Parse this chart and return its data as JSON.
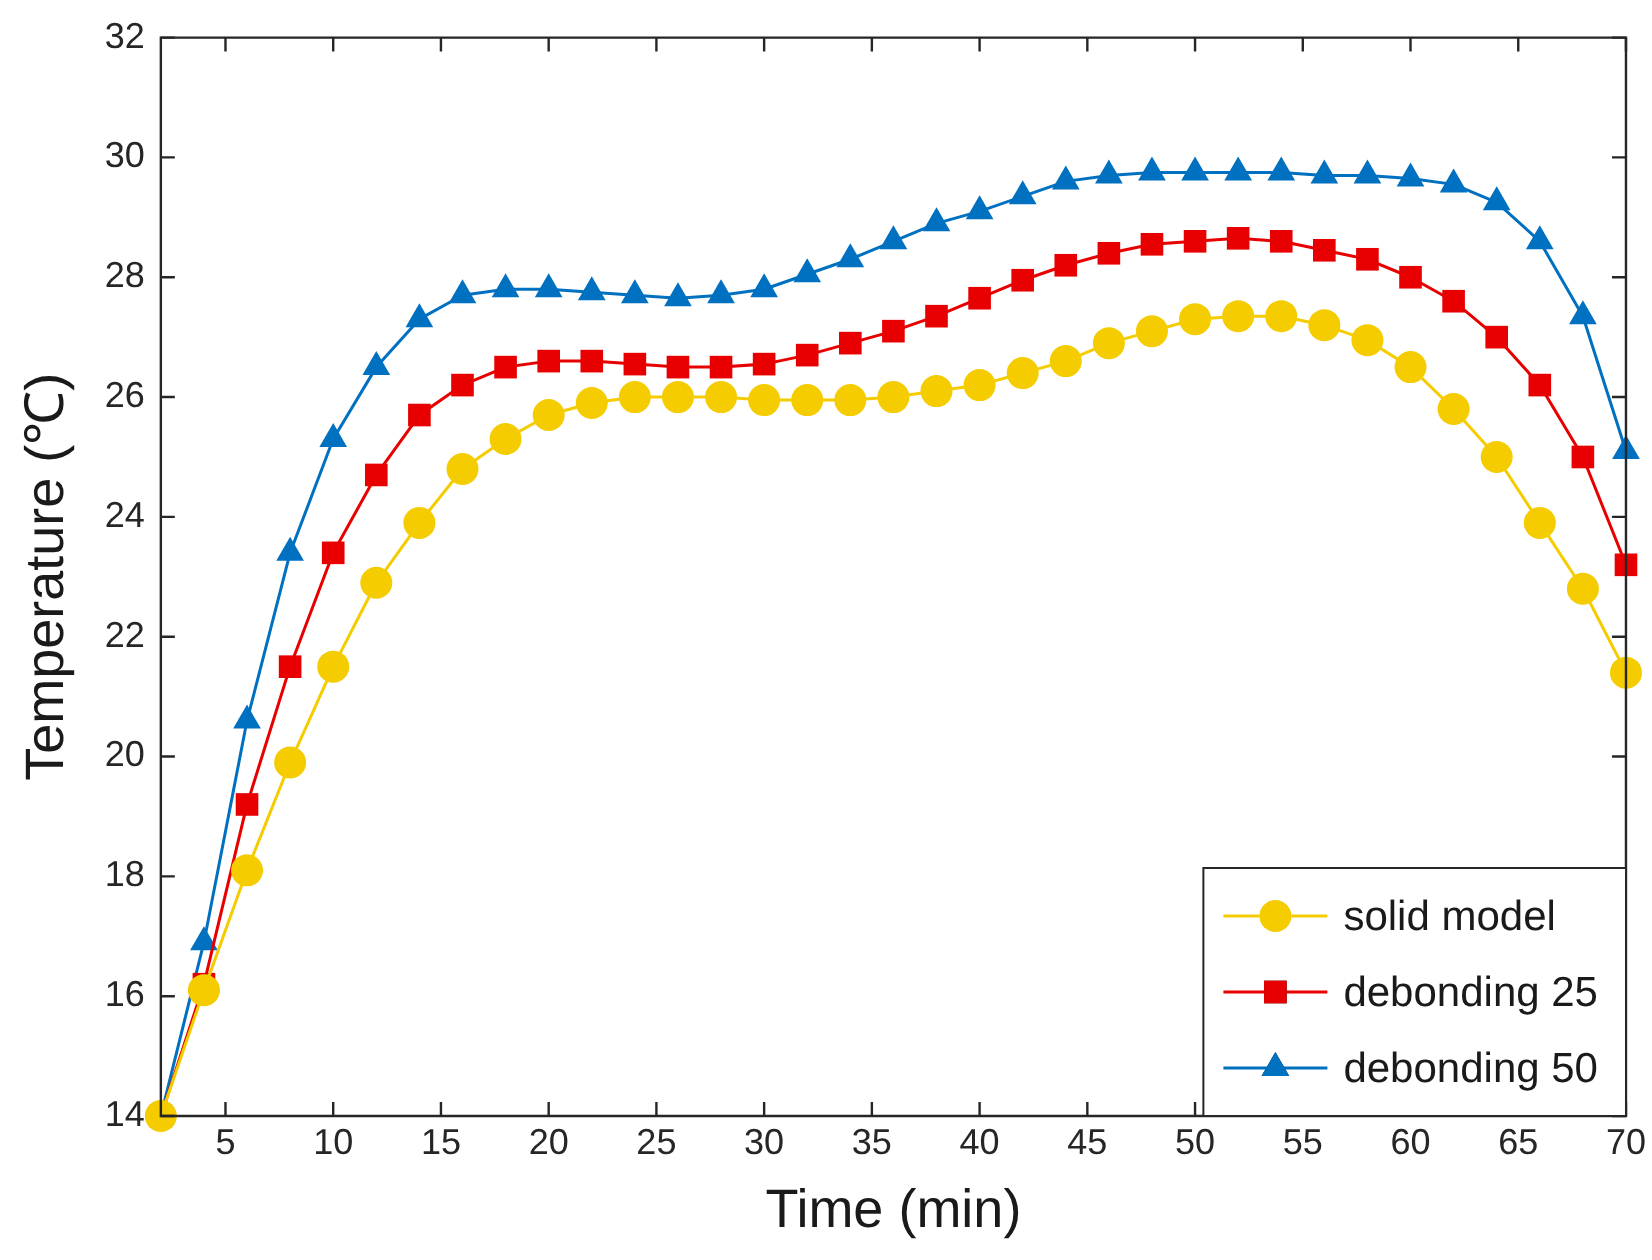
{
  "chart_data": {
    "type": "line",
    "xlabel": "Time (min)",
    "ylabel": "Temperature (℃)",
    "x": [
      2,
      4,
      6,
      8,
      10,
      12,
      14,
      16,
      18,
      20,
      22,
      24,
      26,
      28,
      30,
      32,
      34,
      36,
      38,
      40,
      42,
      44,
      46,
      48,
      50,
      52,
      54,
      56,
      58,
      60,
      62,
      64,
      66,
      68,
      70
    ],
    "series": [
      {
        "name": "solid model",
        "color": "#f5cc00",
        "marker": "circle",
        "values": [
          14,
          16.1,
          18.1,
          19.9,
          21.5,
          22.9,
          23.9,
          24.8,
          25.3,
          25.7,
          25.9,
          26.0,
          26.0,
          26.0,
          25.95,
          25.95,
          25.95,
          26.0,
          26.1,
          26.2,
          26.4,
          26.6,
          26.9,
          27.1,
          27.3,
          27.35,
          27.35,
          27.2,
          26.95,
          26.5,
          25.8,
          25.0,
          23.9,
          22.8,
          21.4
        ]
      },
      {
        "name": "debonding 25",
        "color": "#e80000",
        "marker": "square",
        "values": [
          14,
          16.2,
          19.2,
          21.5,
          23.4,
          24.7,
          25.7,
          26.2,
          26.5,
          26.6,
          26.6,
          26.55,
          26.5,
          26.5,
          26.55,
          26.7,
          26.9,
          27.1,
          27.35,
          27.65,
          27.95,
          28.2,
          28.4,
          28.55,
          28.6,
          28.65,
          28.6,
          28.45,
          28.3,
          28.0,
          27.6,
          27.0,
          26.2,
          25.0,
          23.2
        ]
      },
      {
        "name": "debonding 50",
        "color": "#0070c0",
        "marker": "triangle",
        "values": [
          14,
          16.9,
          20.6,
          23.4,
          25.3,
          26.5,
          27.3,
          27.7,
          27.8,
          27.8,
          27.75,
          27.7,
          27.65,
          27.7,
          27.8,
          28.05,
          28.3,
          28.6,
          28.9,
          29.1,
          29.35,
          29.6,
          29.7,
          29.75,
          29.75,
          29.75,
          29.75,
          29.7,
          29.7,
          29.65,
          29.55,
          29.25,
          28.6,
          27.35,
          25.1
        ]
      }
    ],
    "xlim": [
      2,
      70
    ],
    "xticks": [
      5,
      10,
      15,
      20,
      25,
      30,
      35,
      40,
      45,
      50,
      55,
      60,
      65,
      70
    ],
    "ylim": [
      14,
      32
    ],
    "yticks": [
      14,
      16,
      18,
      20,
      22,
      24,
      26,
      28,
      30,
      32
    ],
    "grid": false,
    "legend": "bottom right",
    "line_style": "solid"
  }
}
